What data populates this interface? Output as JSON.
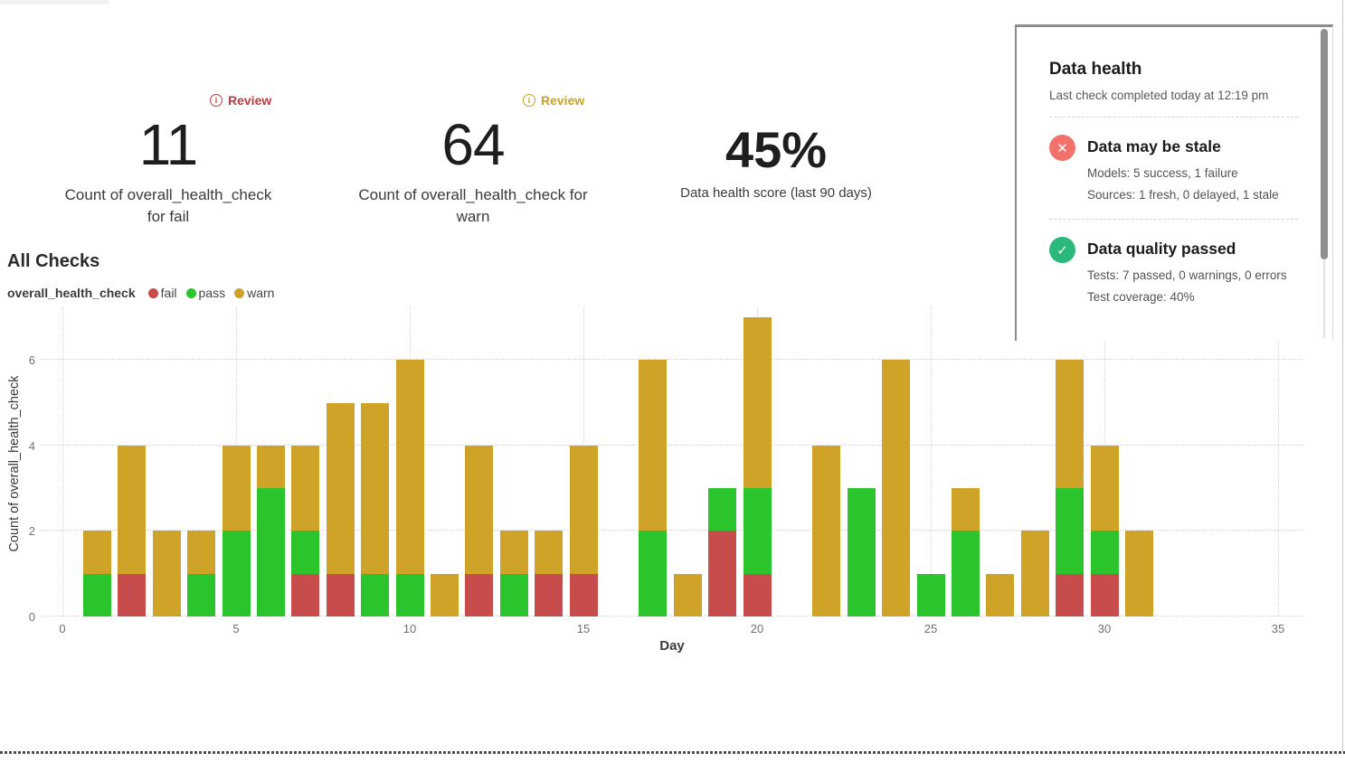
{
  "metrics": [
    {
      "badge": "Review",
      "badge_color": "#bf3a3f",
      "value": "11",
      "label": "Count of overall_health_check for fail"
    },
    {
      "badge": "Review",
      "badge_color": "#c9a227",
      "value": "64",
      "label": "Count of overall_health_check for warn"
    },
    {
      "value": "45%",
      "label": "Data health score (last 90 days)"
    }
  ],
  "section": {
    "title": "All Checks"
  },
  "legend": {
    "series_name": "overall_health_check",
    "items": [
      {
        "label": "fail",
        "color": "#c74c4c"
      },
      {
        "label": "pass",
        "color": "#2cc42c"
      },
      {
        "label": "warn",
        "color": "#cfa327"
      }
    ]
  },
  "chart_data": {
    "type": "bar",
    "stacked": true,
    "title": "All Checks",
    "xlabel": "Day",
    "ylabel": "Count of overall_health_check",
    "x": [
      1,
      2,
      3,
      4,
      5,
      6,
      7,
      8,
      9,
      10,
      11,
      12,
      13,
      14,
      15,
      16,
      17,
      18,
      19,
      20,
      21,
      22,
      23,
      24,
      25,
      26,
      27,
      28,
      29,
      30,
      31
    ],
    "series": [
      {
        "name": "fail",
        "color": "#c74c4c",
        "values": [
          0,
          1,
          0,
          0,
          0,
          0,
          1,
          1,
          0,
          0,
          0,
          1,
          0,
          1,
          1,
          0,
          0,
          0,
          2,
          1,
          0,
          0,
          0,
          0,
          0,
          0,
          0,
          0,
          1,
          1,
          0
        ]
      },
      {
        "name": "pass",
        "color": "#2cc42c",
        "values": [
          1,
          0,
          0,
          1,
          2,
          3,
          1,
          0,
          1,
          1,
          0,
          0,
          1,
          0,
          0,
          0,
          2,
          0,
          1,
          2,
          0,
          0,
          3,
          0,
          1,
          2,
          0,
          0,
          2,
          1,
          0
        ]
      },
      {
        "name": "warn",
        "color": "#cfa327",
        "values": [
          1,
          3,
          2,
          1,
          2,
          1,
          2,
          4,
          4,
          5,
          1,
          3,
          1,
          1,
          3,
          0,
          4,
          1,
          0,
          4,
          0,
          4,
          0,
          6,
          0,
          1,
          1,
          2,
          3,
          2,
          2
        ]
      }
    ],
    "xticks": [
      0,
      5,
      10,
      15,
      20,
      25,
      30,
      35
    ],
    "yticks": [
      0,
      2,
      4,
      6
    ],
    "xlim": [
      0,
      36
    ],
    "ylim": [
      0,
      7
    ],
    "grid": "dotted",
    "legend_position": "top-left"
  },
  "health_panel": {
    "title": "Data health",
    "subtitle": "Last check completed today at 12:19 pm",
    "sections": [
      {
        "icon": "x-circle",
        "icon_color": "#f2716a",
        "heading": "Data may be stale",
        "lines": [
          "Models: 5 success, 1 failure",
          "Sources: 1 fresh, 0 delayed, 1 stale"
        ]
      },
      {
        "icon": "check-circle",
        "icon_color": "#2ab97a",
        "heading": "Data quality passed",
        "lines": [
          "Tests: 7 passed, 0 warnings, 0 errors",
          "Test coverage: 40%"
        ]
      }
    ]
  }
}
